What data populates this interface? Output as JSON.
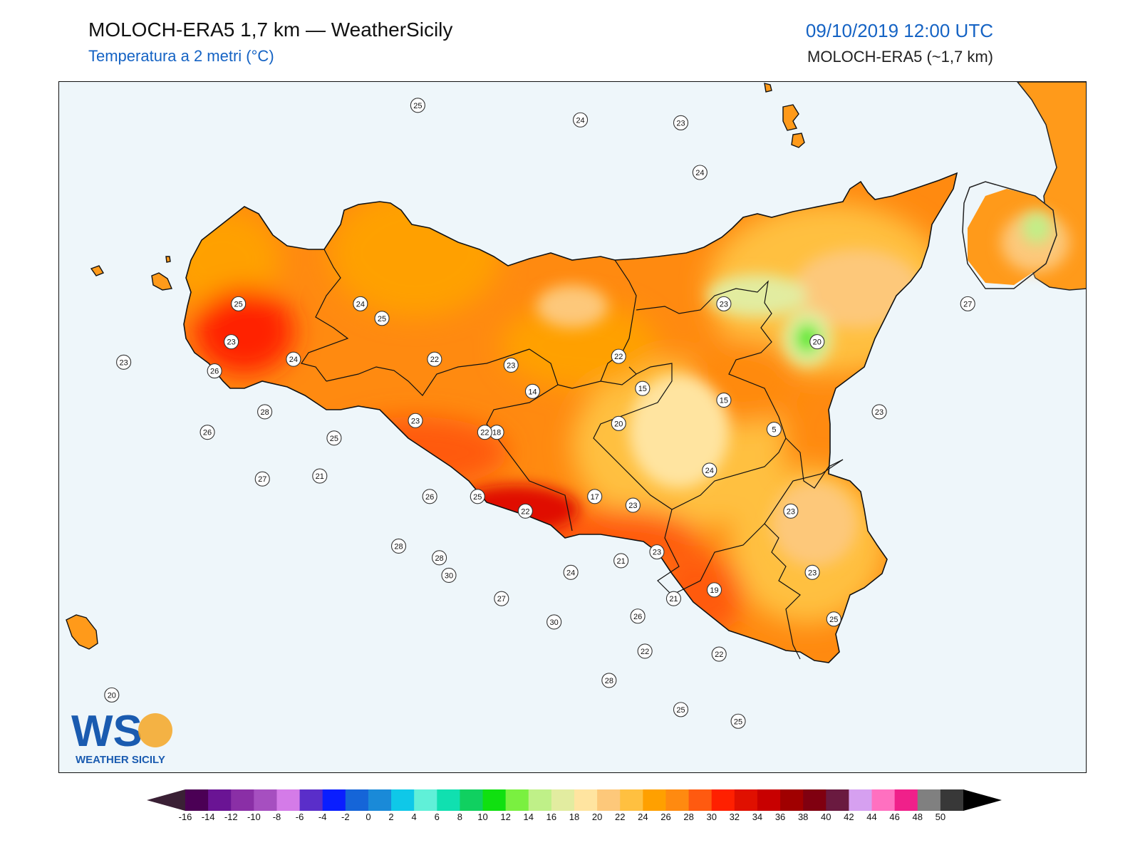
{
  "header": {
    "title": "MOLOCH-ERA5 1,7 km — WeatherSicily",
    "subtitle": "Temperatura a 2 metri (°C)",
    "datetime": "09/10/2019 12:00 UTC",
    "model": "MOLOCH-ERA5 (~1,7 km)"
  },
  "logo": {
    "letters": "WS",
    "brand": "WEATHER SICILY"
  },
  "colors": {
    "sea": "#eef6fa",
    "title_accent": "#1563c4",
    "scale": [
      "#3a2035",
      "#4b0055",
      "#6a1494",
      "#8a2fa6",
      "#a64fc0",
      "#d47be8",
      "#5a2ec9",
      "#0a1eff",
      "#1565d8",
      "#1a8ad8",
      "#0fc8e8",
      "#60f0d8",
      "#10e0b0",
      "#10d060",
      "#10e010",
      "#7af040",
      "#bff088",
      "#e2eca0",
      "#ffe4a0",
      "#fdc87a",
      "#ffc040",
      "#ffa000",
      "#ff8a10",
      "#ff5a10",
      "#ff2000",
      "#e01000",
      "#c80000",
      "#a00000",
      "#800010",
      "#6a1a40",
      "#d6a0f0",
      "#ff70c0",
      "#f0208a",
      "#808080",
      "#383838",
      "#000000"
    ]
  },
  "colorbar": {
    "ticks": [
      "-16",
      "-14",
      "-12",
      "-10",
      "-8",
      "-6",
      "-4",
      "-2",
      "0",
      "2",
      "4",
      "6",
      "8",
      "10",
      "12",
      "14",
      "16",
      "18",
      "20",
      "22",
      "24",
      "26",
      "28",
      "30",
      "32",
      "34",
      "36",
      "38",
      "40",
      "42",
      "44",
      "46",
      "48",
      "50"
    ]
  },
  "stations": [
    {
      "label": "25",
      "lon": 13.5,
      "lat": 38.84
    },
    {
      "label": "24",
      "lon": 14.18,
      "lat": 38.79
    },
    {
      "label": "23",
      "lon": 14.6,
      "lat": 38.78
    },
    {
      "label": "24",
      "lon": 14.68,
      "lat": 38.61
    },
    {
      "label": "25",
      "lon": 12.75,
      "lat": 38.16
    },
    {
      "label": "24",
      "lon": 13.26,
      "lat": 38.16
    },
    {
      "label": "25",
      "lon": 13.35,
      "lat": 38.11
    },
    {
      "label": "23",
      "lon": 14.78,
      "lat": 38.16
    },
    {
      "label": "27",
      "lon": 15.8,
      "lat": 38.16
    },
    {
      "label": "20",
      "lon": 15.17,
      "lat": 38.03
    },
    {
      "label": "23",
      "lon": 12.27,
      "lat": 37.96
    },
    {
      "label": "26",
      "lon": 12.65,
      "lat": 37.93
    },
    {
      "label": "23",
      "lon": 12.72,
      "lat": 38.03
    },
    {
      "label": "24",
      "lon": 12.98,
      "lat": 37.97
    },
    {
      "label": "22",
      "lon": 13.57,
      "lat": 37.97
    },
    {
      "label": "23",
      "lon": 13.89,
      "lat": 37.95
    },
    {
      "label": "22",
      "lon": 14.34,
      "lat": 37.98
    },
    {
      "label": "15",
      "lon": 14.78,
      "lat": 37.83
    },
    {
      "label": "15",
      "lon": 14.44,
      "lat": 37.87
    },
    {
      "label": "14",
      "lon": 13.98,
      "lat": 37.86
    },
    {
      "label": "28",
      "lon": 12.86,
      "lat": 37.79
    },
    {
      "label": "23",
      "lon": 15.43,
      "lat": 37.79
    },
    {
      "label": "23",
      "lon": 13.49,
      "lat": 37.76
    },
    {
      "label": "5",
      "lon": 14.99,
      "lat": 37.73
    },
    {
      "label": "20",
      "lon": 14.34,
      "lat": 37.75
    },
    {
      "label": "18",
      "lon": 13.83,
      "lat": 37.72
    },
    {
      "label": "22",
      "lon": 13.78,
      "lat": 37.72
    },
    {
      "label": "26",
      "lon": 12.62,
      "lat": 37.72
    },
    {
      "label": "25",
      "lon": 13.15,
      "lat": 37.7
    },
    {
      "label": "24",
      "lon": 14.72,
      "lat": 37.59
    },
    {
      "label": "21",
      "lon": 13.09,
      "lat": 37.57
    },
    {
      "label": "27",
      "lon": 12.85,
      "lat": 37.56
    },
    {
      "label": "17",
      "lon": 14.24,
      "lat": 37.5
    },
    {
      "label": "26",
      "lon": 13.55,
      "lat": 37.5
    },
    {
      "label": "25",
      "lon": 13.75,
      "lat": 37.5
    },
    {
      "label": "23",
      "lon": 14.4,
      "lat": 37.47
    },
    {
      "label": "23",
      "lon": 15.06,
      "lat": 37.45
    },
    {
      "label": "22",
      "lon": 13.95,
      "lat": 37.45
    },
    {
      "label": "28",
      "lon": 13.42,
      "lat": 37.33
    },
    {
      "label": "23",
      "lon": 14.5,
      "lat": 37.31
    },
    {
      "label": "28",
      "lon": 13.59,
      "lat": 37.29
    },
    {
      "label": "21",
      "lon": 14.35,
      "lat": 37.28
    },
    {
      "label": "23",
      "lon": 15.15,
      "lat": 37.24
    },
    {
      "label": "24",
      "lon": 14.14,
      "lat": 37.24
    },
    {
      "label": "30",
      "lon": 13.63,
      "lat": 37.23
    },
    {
      "label": "19",
      "lon": 14.74,
      "lat": 37.18
    },
    {
      "label": "27",
      "lon": 13.85,
      "lat": 37.15
    },
    {
      "label": "21",
      "lon": 14.57,
      "lat": 37.15
    },
    {
      "label": "30",
      "lon": 14.07,
      "lat": 37.07
    },
    {
      "label": "26",
      "lon": 14.42,
      "lat": 37.09
    },
    {
      "label": "25",
      "lon": 15.24,
      "lat": 37.08
    },
    {
      "label": "22",
      "lon": 14.76,
      "lat": 36.96
    },
    {
      "label": "22",
      "lon": 14.45,
      "lat": 36.97
    },
    {
      "label": "28",
      "lon": 14.3,
      "lat": 36.87
    },
    {
      "label": "25",
      "lon": 14.6,
      "lat": 36.77
    },
    {
      "label": "25",
      "lon": 14.84,
      "lat": 36.73
    },
    {
      "label": "20",
      "lon": 12.22,
      "lat": 36.82
    }
  ]
}
